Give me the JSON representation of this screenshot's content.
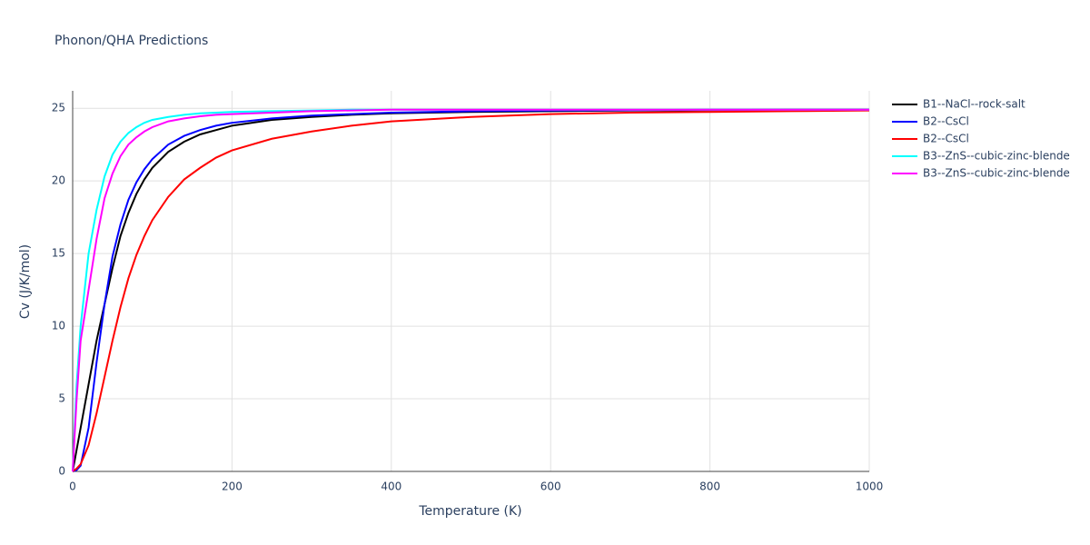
{
  "chart_data": {
    "type": "line",
    "title": "Phonon/QHA Predictions",
    "x_label": "Temperature (K)",
    "y_label": "Cv (J/K/mol)",
    "x": [
      0,
      5,
      10,
      20,
      30,
      40,
      50,
      60,
      70,
      80,
      90,
      100,
      120,
      140,
      160,
      180,
      200,
      250,
      300,
      350,
      400,
      500,
      600,
      700,
      800,
      900,
      1000
    ],
    "series": [
      {
        "name": "B1--NaCl--rock-salt",
        "color": "#000000",
        "values": [
          0,
          1.5,
          3,
          6,
          9,
          11.5,
          14,
          16.2,
          17.8,
          19.1,
          20.1,
          20.9,
          22,
          22.7,
          23.2,
          23.5,
          23.8,
          24.2,
          24.4,
          24.55,
          24.65,
          24.75,
          24.8,
          24.85,
          24.87,
          24.9,
          24.9
        ]
      },
      {
        "name": "B2--CsCl",
        "color": "#0000ff",
        "values": [
          0,
          0.1,
          0.4,
          3,
          7.5,
          11.5,
          14.8,
          17,
          18.7,
          19.9,
          20.8,
          21.5,
          22.5,
          23.1,
          23.5,
          23.8,
          24,
          24.3,
          24.5,
          24.6,
          24.7,
          24.8,
          24.85,
          24.87,
          24.9,
          24.9,
          24.9
        ]
      },
      {
        "name": "B2--CsCl",
        "color": "#ff0000",
        "values": [
          0,
          0.2,
          0.5,
          1.8,
          4,
          6.5,
          9,
          11.3,
          13.3,
          14.9,
          16.2,
          17.3,
          18.9,
          20.1,
          20.9,
          21.6,
          22.1,
          22.9,
          23.4,
          23.8,
          24.1,
          24.4,
          24.6,
          24.7,
          24.75,
          24.8,
          24.85
        ]
      },
      {
        "name": "B3--ZnS--cubic-zinc-blende",
        "color": "#00ffff",
        "values": [
          0,
          6,
          10,
          15,
          18,
          20.3,
          21.8,
          22.7,
          23.3,
          23.7,
          24,
          24.2,
          24.4,
          24.55,
          24.65,
          24.7,
          24.75,
          24.8,
          24.85,
          24.9,
          24.9,
          24.9,
          24.9,
          24.9,
          24.9,
          24.9,
          24.9
        ]
      },
      {
        "name": "B3--ZnS--cubic-zinc-blende",
        "color": "#ff00ff",
        "values": [
          0,
          5,
          9,
          12.5,
          16,
          18.8,
          20.5,
          21.7,
          22.5,
          23,
          23.4,
          23.7,
          24.1,
          24.3,
          24.45,
          24.55,
          24.6,
          24.7,
          24.8,
          24.85,
          24.9,
          24.9,
          24.9,
          24.9,
          24.9,
          24.9,
          24.9
        ]
      }
    ],
    "xlim": [
      0,
      1000
    ],
    "xticks": [
      0,
      200,
      400,
      600,
      800,
      1000
    ],
    "ylim": [
      0,
      26.2
    ],
    "yticks": [
      0,
      5,
      10,
      15,
      20,
      25
    ],
    "grid": true
  }
}
